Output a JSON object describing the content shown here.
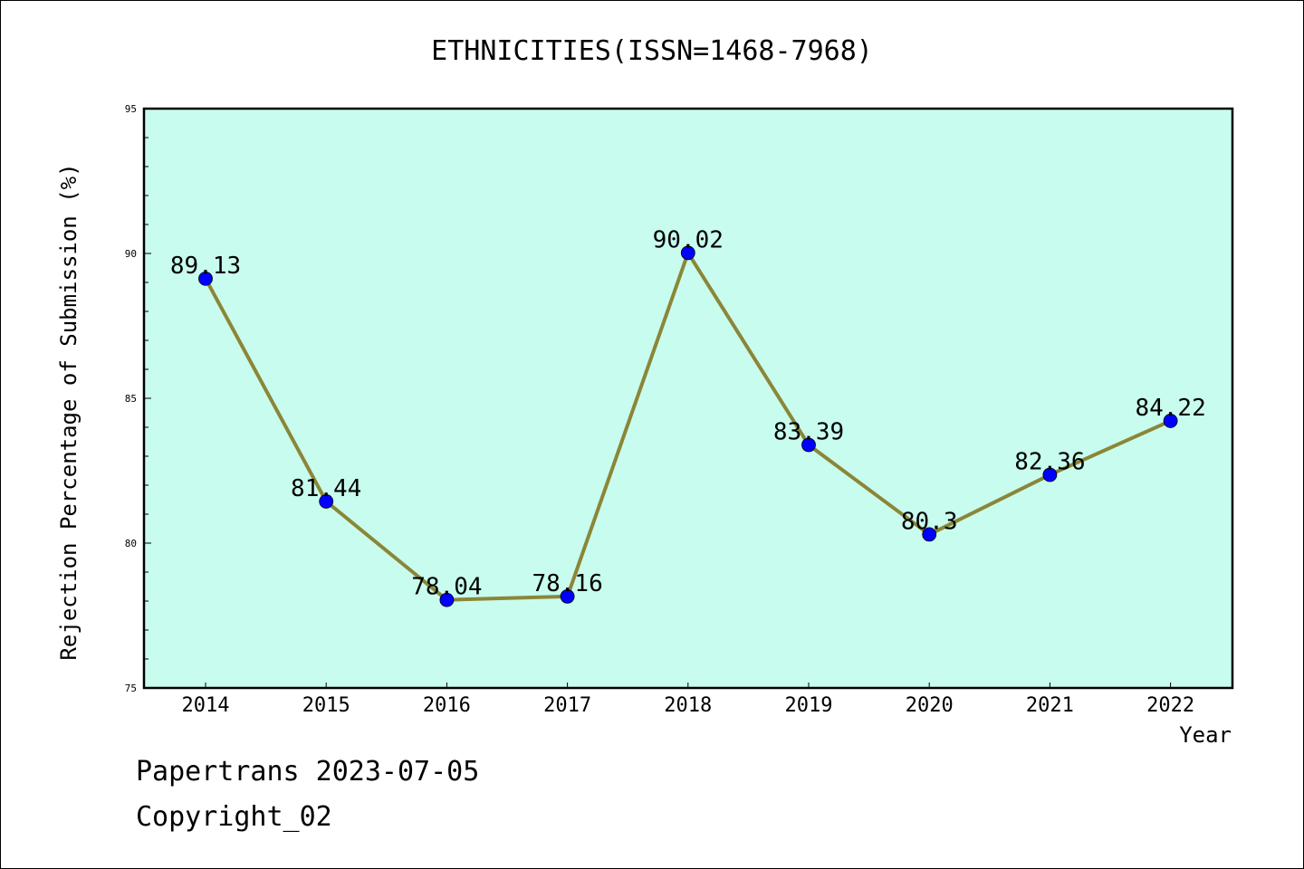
{
  "chart_data": {
    "type": "line",
    "title": "ETHNICITIES(ISSN=1468-7968)",
    "xlabel": "Year",
    "ylabel": "Rejection Percentage of Submission (%)",
    "categories": [
      "2014",
      "2015",
      "2016",
      "2017",
      "2018",
      "2019",
      "2020",
      "2021",
      "2022"
    ],
    "series": [
      {
        "values": [
          89.13,
          81.44,
          78.04,
          78.16,
          90.02,
          83.39,
          80.3,
          82.36,
          84.22
        ],
        "labels": [
          "89.13",
          "81.44",
          "78.04",
          "78.16",
          "90.02",
          "83.39",
          "80.3",
          "82.36",
          "84.22"
        ]
      }
    ],
    "ylim": [
      75,
      95
    ],
    "yticks": [
      75,
      80,
      85,
      90,
      95
    ],
    "grid": false,
    "legend": "none",
    "colors": {
      "plot_background": "#c8fcee",
      "line": "#8b8638",
      "marker": "#0000ff"
    }
  },
  "footer": {
    "line1": "Papertrans 2023-07-05",
    "line2": "Copyright_02"
  }
}
